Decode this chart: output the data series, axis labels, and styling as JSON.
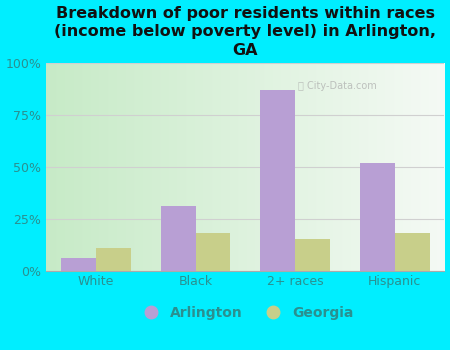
{
  "title": "Breakdown of poor residents within races\n(income below poverty level) in Arlington,\nGA",
  "categories": [
    "White",
    "Black",
    "2+ races",
    "Hispanic"
  ],
  "arlington_values": [
    6,
    31,
    87,
    52
  ],
  "georgia_values": [
    11,
    18,
    15,
    18
  ],
  "arlington_color": "#b89fd4",
  "georgia_color": "#c8cf8a",
  "background_color": "#00eeff",
  "ylim": [
    0,
    100
  ],
  "yticks": [
    0,
    25,
    50,
    75,
    100
  ],
  "ytick_labels": [
    "0%",
    "25%",
    "50%",
    "75%",
    "100%"
  ],
  "bar_width": 0.35,
  "legend_labels": [
    "Arlington",
    "Georgia"
  ],
  "title_fontsize": 11.5,
  "tick_fontsize": 9,
  "legend_fontsize": 10,
  "tick_color": "#2a9090",
  "grid_color": "#d0d0d0",
  "watermark_text": "Ⓣ City-Data.com"
}
